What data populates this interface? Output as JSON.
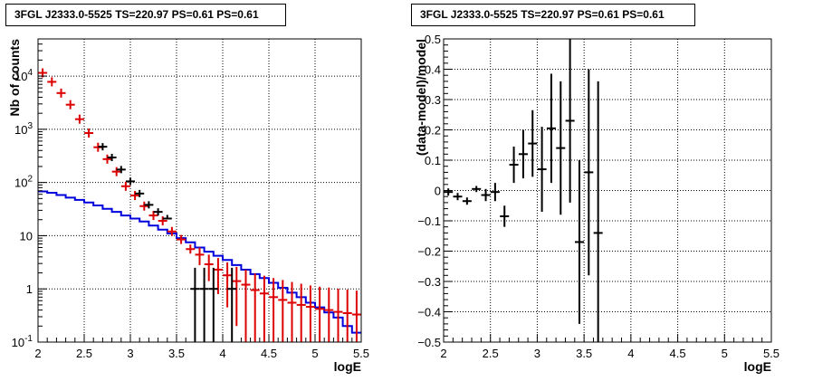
{
  "chart_data": [
    {
      "type": "scatter",
      "panel": "left",
      "title": "3FGL J2333.0-5525 TS=220.97 PS=0.61 PS=0.61",
      "xlabel": "logE",
      "ylabel": "Nb of counts",
      "xlim": [
        2,
        5.5
      ],
      "ylim": [
        0.1,
        50000
      ],
      "yscale": "log",
      "grid": true,
      "x_ticks": [
        "2",
        "2.5",
        "3",
        "3.5",
        "4",
        "4.5",
        "5",
        "5.5"
      ],
      "y_ticks": [
        "10",
        "1",
        "10",
        "10²",
        "10³",
        "10⁴"
      ],
      "colors": {
        "data": "#000000",
        "model_points": "#dd0000",
        "model_line": "#0000dd"
      },
      "series": [
        {
          "kind": "data",
          "x": [
            2.7,
            2.8,
            2.9,
            3.0,
            3.1,
            3.2,
            3.3,
            3.4,
            3.7,
            3.8,
            3.9,
            4.1
          ],
          "y": [
            470,
            295,
            175,
            105,
            62,
            38,
            28,
            21,
            1,
            1,
            1,
            1
          ],
          "y_err_lo": [
            0,
            0,
            0,
            0,
            0,
            0,
            0,
            0.3,
            0.9,
            0.9,
            0.9,
            0.9
          ],
          "y_err_hi": [
            0,
            0,
            0,
            0,
            0,
            0,
            0,
            0,
            1.5,
            1.5,
            1.5,
            1.5
          ],
          "shown_as_bar": [
            false,
            false,
            false,
            false,
            false,
            false,
            false,
            false,
            false,
            false,
            false,
            false
          ]
        },
        {
          "kind": "model_points",
          "x": [
            2.05,
            2.15,
            2.25,
            2.35,
            2.45,
            2.55,
            2.65,
            2.75,
            2.85,
            2.95,
            3.05,
            3.15,
            3.25,
            3.35,
            3.45,
            3.55,
            3.65,
            3.75,
            3.85,
            3.95,
            4.05,
            4.15,
            4.25,
            4.35,
            4.45,
            4.55,
            4.65,
            4.75,
            4.85,
            4.95,
            5.05,
            5.15,
            5.25,
            5.35,
            5.45
          ],
          "y": [
            11500,
            7800,
            4800,
            2900,
            1550,
            850,
            460,
            275,
            160,
            85,
            57,
            36,
            24,
            19,
            12,
            8.5,
            5.6,
            4.4,
            2.9,
            2.3,
            1.8,
            1.4,
            1.2,
            0.95,
            0.82,
            0.7,
            0.62,
            0.55,
            0.5,
            0.46,
            0.42,
            0.4,
            0.37,
            0.35,
            0.33
          ],
          "err": [
            0,
            0,
            0,
            0,
            0,
            0,
            0,
            0,
            0,
            0,
            0,
            0,
            0,
            0,
            0,
            0,
            0,
            1.6,
            1.5,
            1.5,
            1.35,
            1.2,
            1.1,
            1.0,
            0.95,
            0.9,
            0.85,
            0.8,
            0.75,
            0.7,
            0.68,
            0.66,
            0.64,
            0.62,
            0.6
          ]
        },
        {
          "kind": "model_line",
          "bins": [
            2.0,
            2.1,
            2.2,
            2.3,
            2.4,
            2.5,
            2.6,
            2.7,
            2.8,
            2.9,
            3.0,
            3.1,
            3.2,
            3.3,
            3.4,
            3.5,
            3.6,
            3.7,
            3.8,
            3.9,
            4.0,
            4.1,
            4.2,
            4.3,
            4.4,
            4.5,
            4.6,
            4.7,
            4.8,
            4.9,
            5.0,
            5.1,
            5.2,
            5.3,
            5.4,
            5.5
          ],
          "y": [
            68,
            64,
            58,
            52,
            47,
            42,
            37,
            32,
            28,
            24,
            21,
            18.5,
            15.5,
            13,
            11,
            9,
            7.5,
            6,
            5,
            4.2,
            3.5,
            2.8,
            2.3,
            1.9,
            1.6,
            1.3,
            1.05,
            0.85,
            0.7,
            0.55,
            0.45,
            0.36,
            0.29,
            0.2,
            0.15
          ]
        }
      ]
    },
    {
      "type": "scatter",
      "panel": "right",
      "title": "3FGL J2333.0-5525 TS=220.97 PS=0.61 PS=0.61",
      "xlabel": "logE",
      "ylabel": "(data-model)/model",
      "xlim": [
        2,
        5.5
      ],
      "ylim": [
        -0.5,
        0.5
      ],
      "grid": true,
      "x_ticks": [
        "2",
        "2.5",
        "3",
        "3.5",
        "4",
        "4.5",
        "5",
        "5.5"
      ],
      "y_ticks": [
        "−0.5",
        "−0.4",
        "−0.3",
        "−0.2",
        "−0.1",
        "0",
        "0.1",
        "0.2",
        "0.3",
        "0.4",
        "0.5"
      ],
      "series": [
        {
          "kind": "residual",
          "x": [
            2.05,
            2.15,
            2.25,
            2.35,
            2.45,
            2.55,
            2.65,
            2.75,
            2.85,
            2.95,
            3.05,
            3.15,
            3.25,
            3.35,
            3.45,
            3.55,
            3.65
          ],
          "y": [
            -0.005,
            -0.02,
            -0.035,
            0.005,
            -0.015,
            -0.005,
            -0.085,
            0.085,
            0.12,
            0.155,
            0.07,
            0.205,
            0.14,
            0.23,
            -0.17,
            0.06,
            -0.14
          ],
          "err": [
            0.0,
            0.0,
            0.0,
            0.01,
            0.02,
            0.03,
            0.035,
            0.06,
            0.08,
            0.11,
            0.14,
            0.18,
            0.22,
            0.27,
            0.27,
            0.34,
            0.5
          ]
        }
      ]
    }
  ]
}
